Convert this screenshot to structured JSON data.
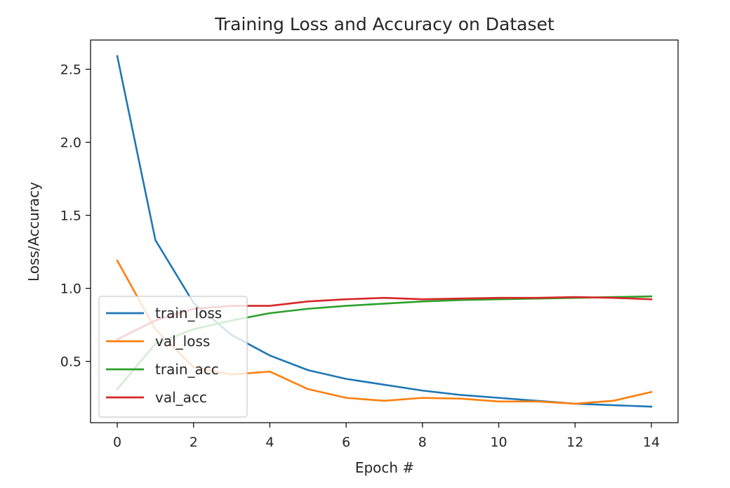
{
  "chart_data": {
    "type": "line",
    "title": "Training Loss and Accuracy on Dataset",
    "xlabel": "Epoch #",
    "ylabel": "Loss/Accuracy",
    "xlim": [
      -0.7,
      14.7
    ],
    "ylim": [
      0.08,
      2.7
    ],
    "xticks": [
      0,
      2,
      4,
      6,
      8,
      10,
      12,
      14
    ],
    "yticks": [
      0.5,
      1.0,
      1.5,
      2.0,
      2.5
    ],
    "grid": false,
    "legend_position": "lower-left",
    "x": [
      0,
      1,
      2,
      3,
      4,
      5,
      6,
      7,
      8,
      9,
      10,
      11,
      12,
      13,
      14
    ],
    "series": [
      {
        "name": "train_loss",
        "color": "#1f77b4",
        "values": [
          2.59,
          1.33,
          0.9,
          0.68,
          0.54,
          0.44,
          0.38,
          0.34,
          0.3,
          0.27,
          0.25,
          0.23,
          0.21,
          0.2,
          0.19
        ]
      },
      {
        "name": "val_loss",
        "color": "#ff7f0e",
        "values": [
          1.19,
          0.72,
          0.46,
          0.41,
          0.43,
          0.31,
          0.25,
          0.23,
          0.25,
          0.245,
          0.225,
          0.225,
          0.21,
          0.23,
          0.29
        ]
      },
      {
        "name": "train_acc",
        "color": "#2ca02c",
        "values": [
          0.31,
          0.62,
          0.72,
          0.78,
          0.83,
          0.86,
          0.88,
          0.895,
          0.91,
          0.92,
          0.925,
          0.93,
          0.935,
          0.94,
          0.945
        ]
      },
      {
        "name": "val_acc",
        "color": "#d62728",
        "values": [
          0.65,
          0.78,
          0.86,
          0.88,
          0.88,
          0.91,
          0.925,
          0.935,
          0.925,
          0.93,
          0.935,
          0.935,
          0.94,
          0.935,
          0.925
        ]
      }
    ]
  }
}
